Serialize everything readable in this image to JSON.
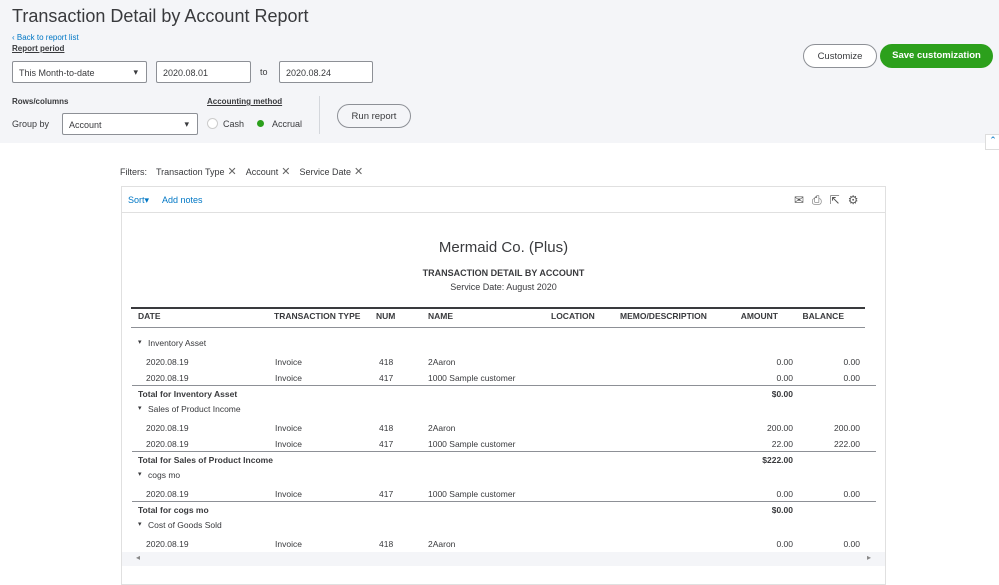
{
  "header": {
    "title": "Transaction Detail by Account Report",
    "back_link": "Back to report list",
    "report_period_label": "Report period",
    "period_select": "This Month-to-date",
    "from_date": "2020.08.01",
    "to_label": "to",
    "to_date": "2020.08.24",
    "rows_columns_label": "Rows/columns",
    "group_by_label": "Group by",
    "group_by_select": "Account",
    "accounting_method_label": "Accounting method",
    "method_options": [
      "Cash",
      "Accrual"
    ],
    "run_report": "Run report",
    "customize": "Customize",
    "save_customization": "Save customization"
  },
  "filters": {
    "label": "Filters:",
    "items": [
      "Transaction Type",
      "Account",
      "Service Date"
    ]
  },
  "toolbar": {
    "sort": "Sort",
    "add_notes": "Add notes"
  },
  "report": {
    "company": "Mermaid Co. (Plus)",
    "title": "TRANSACTION DETAIL BY ACCOUNT",
    "subtitle": "Service Date: August 2020",
    "columns": [
      "DATE",
      "TRANSACTION TYPE",
      "NUM",
      "NAME",
      "LOCATION",
      "MEMO/DESCRIPTION",
      "AMOUNT",
      "BALANCE"
    ],
    "sections": [
      {
        "name": "Inventory Asset",
        "rows": [
          {
            "date": "2020.08.19",
            "type": "Invoice",
            "num": "418",
            "name": "2Aaron",
            "amount": "0.00",
            "balance": "0.00"
          },
          {
            "date": "2020.08.19",
            "type": "Invoice",
            "num": "417",
            "name": "1000 Sample customer",
            "amount": "0.00",
            "balance": "0.00"
          }
        ],
        "total_label": "Total for Inventory Asset",
        "total": "$0.00"
      },
      {
        "name": "Sales of Product Income",
        "rows": [
          {
            "date": "2020.08.19",
            "type": "Invoice",
            "num": "418",
            "name": "2Aaron",
            "amount": "200.00",
            "balance": "200.00"
          },
          {
            "date": "2020.08.19",
            "type": "Invoice",
            "num": "417",
            "name": "1000 Sample customer",
            "amount": "22.00",
            "balance": "222.00"
          }
        ],
        "total_label": "Total for Sales of Product Income",
        "total": "$222.00"
      },
      {
        "name": "cogs mo",
        "rows": [
          {
            "date": "2020.08.19",
            "type": "Invoice",
            "num": "417",
            "name": "1000 Sample customer",
            "amount": "0.00",
            "balance": "0.00"
          }
        ],
        "total_label": "Total for cogs mo",
        "total": "$0.00"
      },
      {
        "name": "Cost of Goods Sold",
        "rows": [
          {
            "date": "2020.08.19",
            "type": "Invoice",
            "num": "418",
            "name": "2Aaron",
            "amount": "0.00",
            "balance": "0.00"
          }
        ]
      }
    ]
  }
}
